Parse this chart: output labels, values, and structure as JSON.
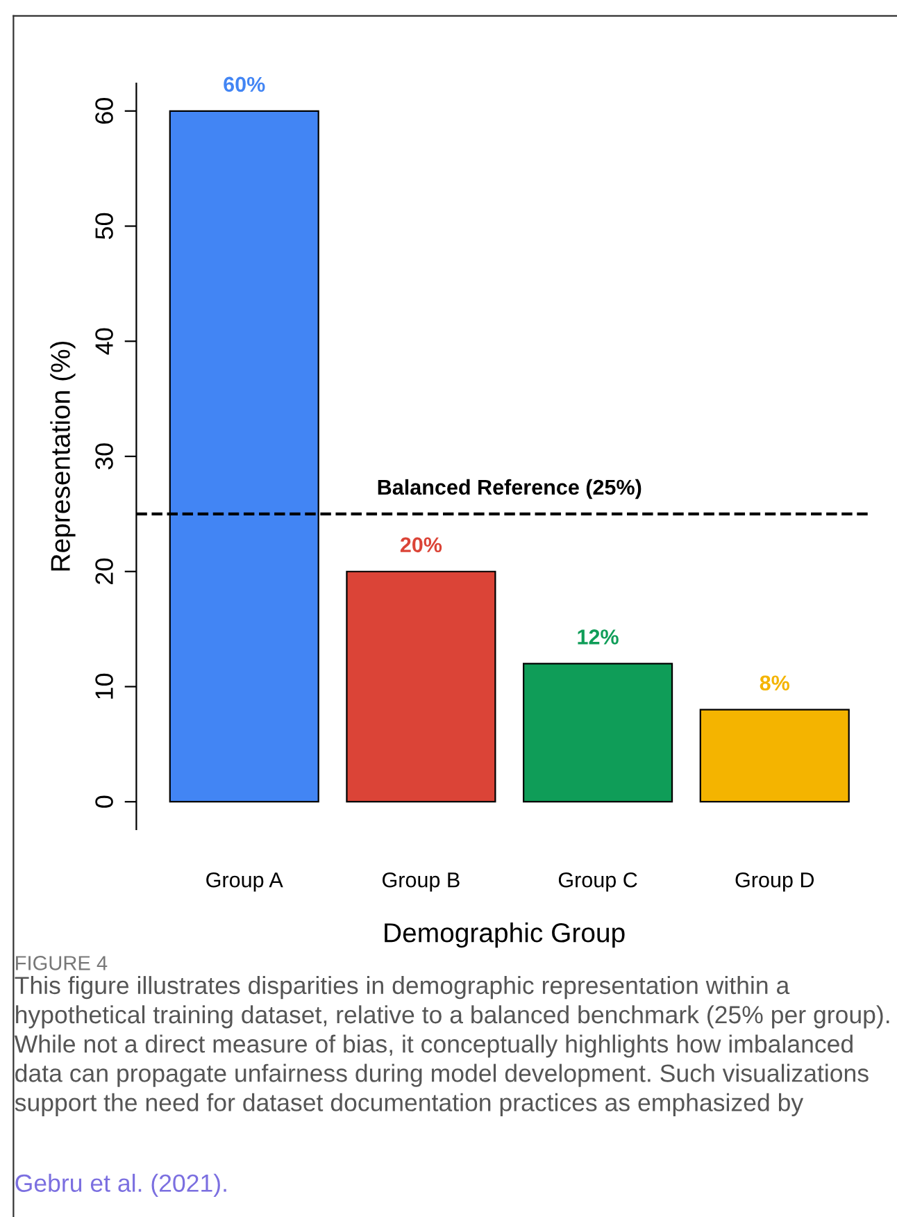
{
  "chart_data": {
    "type": "bar",
    "xlabel": "Demographic Group",
    "ylabel": "Representation (%)",
    "categories": [
      "Group A",
      "Group B",
      "Group C",
      "Group D"
    ],
    "values": [
      60,
      20,
      12,
      8
    ],
    "colors": [
      "#4285f4",
      "#db4437",
      "#0f9d58",
      "#f4b400"
    ],
    "value_labels": [
      "60%",
      "20%",
      "12%",
      "8%"
    ],
    "ylim": [
      -2.4,
      62.4
    ],
    "yticks": [
      0,
      10,
      20,
      30,
      40,
      50,
      60
    ],
    "ref_lines": [
      {
        "axis": "y",
        "value": 25,
        "label": "Balanced Reference (25%)",
        "color": "#000000",
        "line_style": "dashed"
      }
    ],
    "annotations": [
      "FIGURE 4",
      "This figure illustrates disparities in demographic representation within a hypothetical training dataset, relative to a balanced benchmark (25% per group). While not a direct measure of bias, it conceptually highlights how imbalanced data can propagate unfairness during model development. Such visualizations support the need for dataset documentation practices as emphasized by",
      "Gebru et al. (2021)."
    ],
    "grid": false,
    "legend": false
  }
}
